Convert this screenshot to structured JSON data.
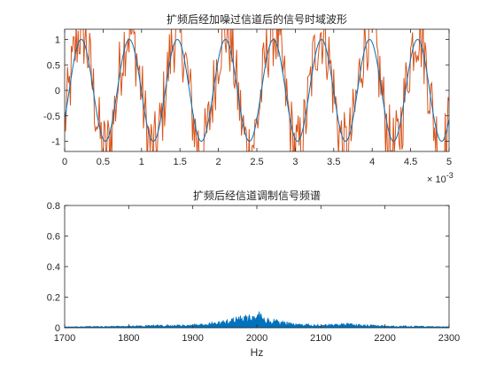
{
  "figure": {
    "background": "#ffffff"
  },
  "chart_data": [
    {
      "type": "line",
      "title": "扩频后经加噪过信道后的信号时域波形",
      "xlabel": "",
      "ylabel": "",
      "xlim": [
        0,
        5
      ],
      "ylim": [
        -1.2,
        1.2
      ],
      "x_exponent_label": "× 10",
      "x_exponent_value": "-3",
      "xticks": [
        0,
        0.5,
        1,
        1.5,
        2,
        2.5,
        3,
        3.5,
        4,
        4.5,
        5
      ],
      "xticklabels": [
        "0",
        "0.5",
        "1",
        "1.5",
        "2",
        "2.5",
        "3",
        "3.5",
        "4",
        "4.5",
        "5"
      ],
      "yticks": [
        -1,
        -0.5,
        0,
        0.5,
        1
      ],
      "yticklabels": [
        "-1",
        "-0.5",
        "0",
        "0.5",
        "1"
      ],
      "grid": false,
      "series": [
        {
          "style": "clean-sinusoid",
          "color": "#0072bd",
          "frequency_cycles_per_unit": 1.6,
          "amplitude": 1.0
        },
        {
          "style": "noisy-signal",
          "color": "#d95319",
          "base_frequency_cycles_per_unit": 1.6,
          "noise_amplitude": 0.45,
          "sample_count": 400
        }
      ]
    },
    {
      "type": "area",
      "title": "扩频后经信道调制信号频谱",
      "xlabel": "Hz",
      "ylabel": "",
      "xlim": [
        1700,
        2300
      ],
      "ylim": [
        0,
        0.8
      ],
      "xticks": [
        1700,
        1800,
        1900,
        2000,
        2100,
        2200,
        2300
      ],
      "xticklabels": [
        "1700",
        "1800",
        "1900",
        "2000",
        "2100",
        "2200",
        "2300"
      ],
      "yticks": [
        0,
        0.2,
        0.4,
        0.6,
        0.8
      ],
      "yticklabels": [
        "0",
        "0.2",
        "0.4",
        "0.6",
        "0.8"
      ],
      "grid": false,
      "series": [
        {
          "color": "#0072bd",
          "x": [
            1700,
            1720,
            1740,
            1760,
            1780,
            1800,
            1820,
            1840,
            1860,
            1880,
            1900,
            1920,
            1930,
            1940,
            1950,
            1960,
            1970,
            1980,
            1985,
            1990,
            2000,
            2005,
            2010,
            2020,
            2030,
            2040,
            2050,
            2060,
            2080,
            2100,
            2120,
            2140,
            2160,
            2180,
            2200,
            2220,
            2240,
            2260,
            2280,
            2300
          ],
          "y": [
            0.005,
            0.006,
            0.008,
            0.007,
            0.009,
            0.01,
            0.012,
            0.015,
            0.014,
            0.016,
            0.018,
            0.022,
            0.03,
            0.035,
            0.04,
            0.05,
            0.06,
            0.07,
            0.095,
            0.06,
            0.07,
            0.1,
            0.065,
            0.05,
            0.045,
            0.04,
            0.03,
            0.025,
            0.02,
            0.018,
            0.02,
            0.025,
            0.018,
            0.015,
            0.012,
            0.01,
            0.01,
            0.008,
            0.007,
            0.005
          ]
        }
      ]
    }
  ]
}
